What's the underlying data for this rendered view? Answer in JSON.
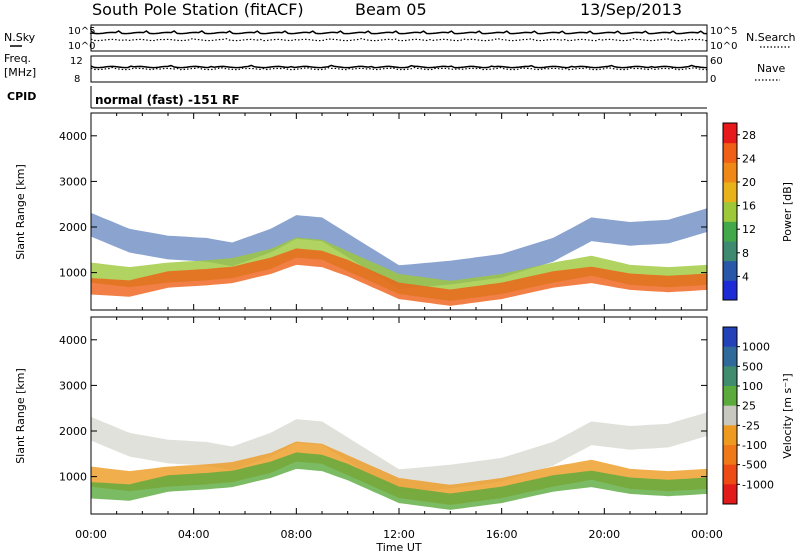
{
  "header": {
    "title": "South Pole Station (fitACF)",
    "beam": "Beam 05",
    "date": "13/Sep/2013"
  },
  "top_panels": {
    "nsky_label": "N.Sky",
    "nsearch_label": "N.Search",
    "freq_label_1": "Freq.",
    "freq_label_2": "[MHz]",
    "nave_label": "Nave",
    "cpid_label": "CPID",
    "left_ticks_noise": [
      "10^5",
      "10^0"
    ],
    "right_ticks_noise": [
      "10^5",
      "10^0"
    ],
    "left_ticks_freq": [
      "12",
      "8"
    ],
    "right_ticks_freq": [
      "60",
      "0"
    ],
    "cpid_text": "normal (fast) -151 RF"
  },
  "colors": {
    "power_scale": [
      "#1c2bd6",
      "#2a58a8",
      "#3d8a70",
      "#42a84a",
      "#9cc83a",
      "#e8b21a",
      "#f08818",
      "#ef5f16",
      "#e8191a"
    ],
    "velocity_scale": [
      "#2342b8",
      "#2f6a9a",
      "#3f8c6e",
      "#5aaa3c",
      "#c8c8c0",
      "#ee9a20",
      "#ef7818",
      "#ee4a16",
      "#e21a1a"
    ]
  },
  "chart_data": [
    {
      "type": "heatmap",
      "title": "",
      "xlabel": "Time UT",
      "ylabel": "Slant Range [km]",
      "x_ticks": [
        "00:00",
        "04:00",
        "08:00",
        "12:00",
        "16:00",
        "20:00",
        "00:00"
      ],
      "y_ticks": [
        "1000",
        "2000",
        "3000",
        "4000"
      ],
      "ylim": [
        180,
        4500
      ],
      "colorbar": {
        "label": "Power [dB]",
        "ticks": [
          "4",
          "8",
          "12",
          "16",
          "20",
          "24",
          "28"
        ],
        "range": [
          0,
          30
        ]
      },
      "layers": [
        {
          "name": "far-scatter",
          "x": [
            0.0,
            1.5,
            3.0,
            4.5,
            5.5,
            7.0,
            8.0,
            9.0,
            10.0,
            12.0,
            14.0,
            16.0,
            18.0,
            19.5,
            21.0,
            22.5,
            24.0
          ],
          "y": [
            2050,
            1700,
            1550,
            1500,
            1400,
            1700,
            2000,
            1950,
            1600,
            900,
            1000,
            1150,
            1500,
            1950,
            1850,
            1900,
            2150
          ],
          "value": 4
        },
        {
          "name": "main-echo",
          "x": [
            0.0,
            1.5,
            3.0,
            4.5,
            5.5,
            7.0,
            8.0,
            9.0,
            10.0,
            12.0,
            14.0,
            16.0,
            18.0,
            19.5,
            21.0,
            22.5,
            24.0
          ],
          "y": [
            1000,
            900,
            1000,
            1050,
            1100,
            1300,
            1550,
            1500,
            1250,
            750,
            600,
            750,
            1000,
            1150,
            950,
            900,
            950
          ],
          "value": 14
        },
        {
          "name": "core",
          "x": [
            0.0,
            1.5,
            3.0,
            4.5,
            5.5,
            7.0,
            8.0,
            9.0,
            10.0,
            12.0,
            14.0,
            16.0,
            18.0,
            19.5,
            21.0,
            22.5,
            24.0
          ],
          "y": [
            700,
            650,
            850,
            900,
            950,
            1150,
            1350,
            1300,
            1100,
            600,
            450,
            600,
            850,
            950,
            800,
            750,
            800
          ],
          "value": 26
        }
      ]
    },
    {
      "type": "heatmap",
      "title": "",
      "xlabel": "Time UT",
      "ylabel": "Slant Range [km]",
      "x_ticks": [
        "00:00",
        "04:00",
        "08:00",
        "12:00",
        "16:00",
        "20:00",
        "00:00"
      ],
      "y_ticks": [
        "1000",
        "2000",
        "3000",
        "4000"
      ],
      "ylim": [
        180,
        4500
      ],
      "colorbar": {
        "label": "Velocity [m s⁻¹]",
        "ticks": [
          "1000",
          "500",
          "100",
          "25",
          "-25",
          "-100",
          "-500",
          "-1000"
        ],
        "range": [
          -1000,
          1000
        ]
      },
      "layers": [
        {
          "name": "far-scatter",
          "x": [
            0.0,
            1.5,
            3.0,
            4.5,
            5.5,
            7.0,
            8.0,
            9.0,
            10.0,
            12.0,
            14.0,
            16.0,
            18.0,
            19.5,
            21.0,
            22.5,
            24.0
          ],
          "y": [
            2050,
            1700,
            1550,
            1500,
            1400,
            1700,
            2000,
            1950,
            1600,
            900,
            1000,
            1150,
            1500,
            1950,
            1850,
            1900,
            2150
          ],
          "value": 0
        },
        {
          "name": "main-echo",
          "x": [
            0.0,
            1.5,
            3.0,
            4.5,
            5.5,
            7.0,
            8.0,
            9.0,
            10.0,
            12.0,
            14.0,
            16.0,
            18.0,
            19.5,
            21.0,
            22.5,
            24.0
          ],
          "y": [
            1000,
            900,
            1000,
            1050,
            1100,
            1300,
            1550,
            1500,
            1250,
            750,
            600,
            750,
            1000,
            1150,
            950,
            900,
            950
          ],
          "value": -200
        },
        {
          "name": "core",
          "x": [
            0.0,
            1.5,
            3.0,
            4.5,
            5.5,
            7.0,
            8.0,
            9.0,
            10.0,
            12.0,
            14.0,
            16.0,
            18.0,
            19.5,
            21.0,
            22.5,
            24.0
          ],
          "y": [
            700,
            650,
            850,
            900,
            950,
            1150,
            1350,
            1300,
            1100,
            600,
            450,
            600,
            850,
            950,
            800,
            750,
            800
          ],
          "value": 150
        }
      ]
    }
  ]
}
